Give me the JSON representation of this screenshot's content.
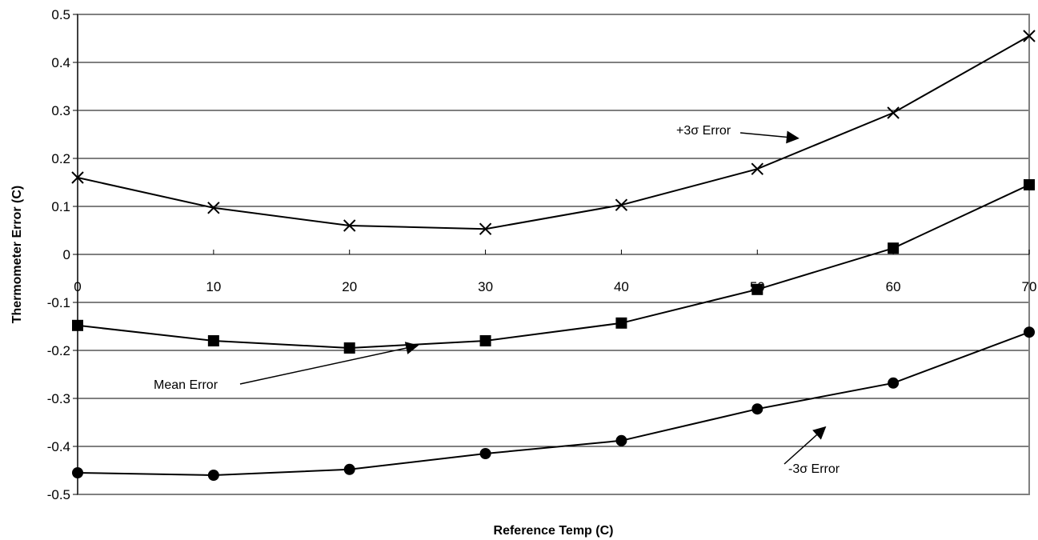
{
  "chart_data": {
    "type": "line",
    "title": "",
    "xlabel": "Reference Temp (C)",
    "ylabel": "Thermometer Error (C)",
    "xlim": [
      0,
      70
    ],
    "ylim": [
      -0.5,
      0.5
    ],
    "x_ticks": [
      "0",
      "10",
      "20",
      "30",
      "40",
      "50",
      "60",
      "70"
    ],
    "y_ticks": [
      "0.5",
      "0.4",
      "0.3",
      "0.2",
      "0.1",
      "0",
      "-0.1",
      "-0.2",
      "-0.3",
      "-0.4",
      "-0.5"
    ],
    "grid": "horizontal",
    "legend": "none",
    "x": [
      0,
      10,
      20,
      30,
      40,
      50,
      60,
      70
    ],
    "series": [
      {
        "name": "+3σ Error",
        "marker": "x",
        "values": [
          0.16,
          0.097,
          0.06,
          0.053,
          0.103,
          0.178,
          0.295,
          0.455
        ]
      },
      {
        "name": "Mean Error",
        "marker": "square",
        "values": [
          -0.148,
          -0.18,
          -0.195,
          -0.18,
          -0.143,
          -0.073,
          0.013,
          0.145
        ]
      },
      {
        "name": "-3σ Error",
        "marker": "circle",
        "values": [
          -0.455,
          -0.46,
          -0.448,
          -0.415,
          -0.388,
          -0.322,
          -0.268,
          -0.162
        ]
      }
    ],
    "annotations": [
      {
        "text": "+3σ Error",
        "points_to": {
          "x": 53,
          "y": 0.242
        }
      },
      {
        "text": "Mean Error",
        "points_to": {
          "x": 25,
          "y": -0.19
        }
      },
      {
        "text": "-3σ Error",
        "points_to": {
          "x": 55,
          "y": -0.36
        }
      }
    ],
    "colors": {
      "line": "#000000",
      "plot_border": "#808080",
      "grid": "#000000"
    }
  }
}
